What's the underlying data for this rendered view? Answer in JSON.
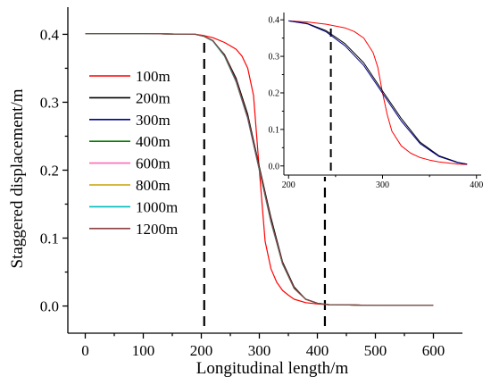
{
  "chart_data": [
    {
      "type": "line",
      "title": "",
      "xlabel": "Longitudinal length/m",
      "ylabel": "Staggered displacement/m",
      "xlim": [
        -30,
        650
      ],
      "ylim": [
        -0.04,
        0.44
      ],
      "xticks": [
        0,
        100,
        200,
        300,
        400,
        500,
        600
      ],
      "yticks": [
        0.0,
        0.1,
        0.2,
        0.3,
        0.4
      ],
      "ytick_labels": [
        "0.0",
        "0.1",
        "0.2",
        "0.3",
        "0.4"
      ],
      "grid": false,
      "legend_position": "left",
      "reference_lines_x": [
        205,
        413
      ],
      "series": [
        {
          "name": "100m",
          "color": "#ff0000",
          "x": [
            0,
            100,
            190,
            205,
            220,
            240,
            260,
            270,
            280,
            290,
            300,
            310,
            320,
            330,
            340,
            350,
            360,
            380,
            400,
            420,
            500,
            600
          ],
          "y": [
            0.401,
            0.401,
            0.4,
            0.398,
            0.395,
            0.388,
            0.378,
            0.368,
            0.35,
            0.31,
            0.2,
            0.095,
            0.055,
            0.035,
            0.023,
            0.016,
            0.01,
            0.005,
            0.003,
            0.002,
            0.001,
            0.001
          ]
        },
        {
          "name": "200m",
          "color": "#000000",
          "x": [
            0,
            100,
            190,
            205,
            220,
            240,
            260,
            280,
            300,
            320,
            340,
            360,
            380,
            400,
            420,
            500,
            600
          ],
          "y": [
            0.401,
            0.401,
            0.4,
            0.397,
            0.39,
            0.37,
            0.335,
            0.282,
            0.205,
            0.13,
            0.065,
            0.028,
            0.01,
            0.004,
            0.002,
            0.001,
            0.001
          ]
        },
        {
          "name": "300m",
          "color": "#00008b",
          "x": [
            0,
            100,
            190,
            205,
            220,
            240,
            260,
            280,
            300,
            320,
            340,
            360,
            380,
            400,
            420,
            500,
            600
          ],
          "y": [
            0.401,
            0.401,
            0.4,
            0.397,
            0.39,
            0.368,
            0.33,
            0.276,
            0.2,
            0.124,
            0.062,
            0.026,
            0.01,
            0.004,
            0.002,
            0.001,
            0.001
          ]
        },
        {
          "name": "400m",
          "color": "#008000",
          "x": [
            0,
            100,
            190,
            205,
            220,
            240,
            260,
            280,
            300,
            320,
            340,
            360,
            380,
            400,
            420,
            500,
            600
          ],
          "y": [
            0.401,
            0.401,
            0.4,
            0.397,
            0.39,
            0.368,
            0.331,
            0.277,
            0.201,
            0.125,
            0.062,
            0.026,
            0.01,
            0.004,
            0.002,
            0.001,
            0.001
          ]
        },
        {
          "name": "600m",
          "color": "#ff69b4",
          "x": [
            0,
            100,
            190,
            205,
            220,
            240,
            260,
            280,
            300,
            320,
            340,
            360,
            380,
            400,
            420,
            500,
            600
          ],
          "y": [
            0.401,
            0.401,
            0.4,
            0.397,
            0.39,
            0.368,
            0.331,
            0.277,
            0.201,
            0.125,
            0.062,
            0.026,
            0.01,
            0.004,
            0.002,
            0.001,
            0.001
          ]
        },
        {
          "name": "800m",
          "color": "#c8a000",
          "x": [
            0,
            100,
            190,
            205,
            220,
            240,
            260,
            280,
            300,
            320,
            340,
            360,
            380,
            400,
            420,
            500,
            600
          ],
          "y": [
            0.401,
            0.401,
            0.4,
            0.397,
            0.39,
            0.368,
            0.331,
            0.277,
            0.201,
            0.125,
            0.062,
            0.026,
            0.01,
            0.004,
            0.002,
            0.001,
            0.001
          ]
        },
        {
          "name": "1000m",
          "color": "#00bcbc",
          "x": [
            0,
            100,
            190,
            205,
            220,
            240,
            260,
            280,
            300,
            320,
            340,
            360,
            380,
            400,
            420,
            500,
            600
          ],
          "y": [
            0.401,
            0.401,
            0.4,
            0.397,
            0.39,
            0.368,
            0.331,
            0.277,
            0.201,
            0.125,
            0.062,
            0.026,
            0.01,
            0.004,
            0.002,
            0.001,
            0.001
          ]
        },
        {
          "name": "1200m",
          "color": "#8b4040",
          "x": [
            0,
            100,
            190,
            205,
            220,
            240,
            260,
            280,
            300,
            320,
            340,
            360,
            380,
            400,
            420,
            500,
            600
          ],
          "y": [
            0.401,
            0.401,
            0.4,
            0.397,
            0.391,
            0.369,
            0.332,
            0.278,
            0.202,
            0.126,
            0.063,
            0.026,
            0.01,
            0.004,
            0.002,
            0.001,
            0.001
          ]
        }
      ]
    },
    {
      "type": "line",
      "title": "",
      "xlabel": "",
      "ylabel": "",
      "xlim": [
        195,
        405
      ],
      "ylim": [
        -0.025,
        0.42
      ],
      "xticks": [
        200,
        300,
        400
      ],
      "yticks": [
        0.0,
        0.1,
        0.2,
        0.3,
        0.4
      ],
      "ytick_labels": [
        "0.0",
        "0.1",
        "0.2",
        "0.3",
        "0.4"
      ],
      "grid": false,
      "reference_lines_x": [
        245
      ],
      "series": [
        {
          "name": "100m",
          "color": "#ff0000",
          "x": [
            200,
            220,
            240,
            260,
            270,
            280,
            290,
            295,
            300,
            305,
            310,
            320,
            330,
            340,
            350,
            360,
            370,
            380,
            390
          ],
          "y": [
            0.397,
            0.394,
            0.388,
            0.378,
            0.368,
            0.35,
            0.31,
            0.27,
            0.2,
            0.14,
            0.095,
            0.055,
            0.035,
            0.023,
            0.016,
            0.011,
            0.008,
            0.005,
            0.004
          ]
        },
        {
          "name": "200m",
          "color": "#000000",
          "x": [
            200,
            220,
            240,
            260,
            280,
            300,
            320,
            340,
            360,
            380,
            390
          ],
          "y": [
            0.397,
            0.39,
            0.37,
            0.335,
            0.282,
            0.205,
            0.13,
            0.065,
            0.028,
            0.01,
            0.005
          ]
        },
        {
          "name": "300m",
          "color": "#00008b",
          "x": [
            200,
            220,
            240,
            260,
            280,
            300,
            320,
            340,
            360,
            380,
            390
          ],
          "y": [
            0.397,
            0.389,
            0.367,
            0.329,
            0.275,
            0.199,
            0.123,
            0.061,
            0.026,
            0.009,
            0.005
          ]
        }
      ]
    }
  ]
}
